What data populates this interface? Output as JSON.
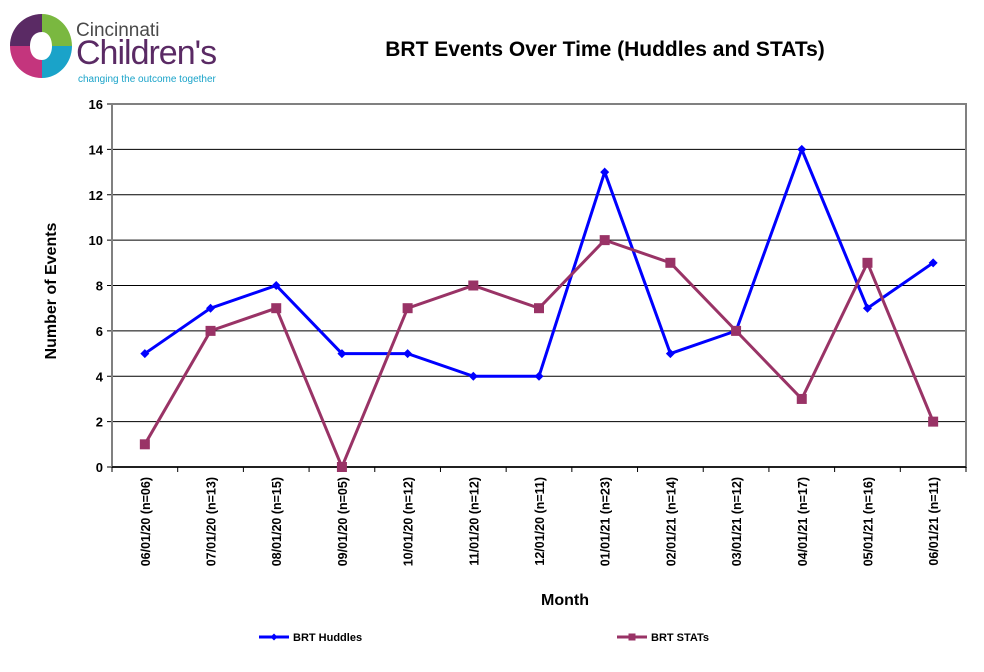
{
  "logo": {
    "line1": "Cincinnati",
    "line2": "Children's",
    "tagline": "changing the outcome together",
    "colors": [
      "#7ab840",
      "#1aa3c9",
      "#c4357d",
      "#5a2a64"
    ]
  },
  "chart_data": {
    "type": "line",
    "title": "BRT Events Over Time (Huddles and STATs)",
    "xlabel": "Month",
    "ylabel": "Number of Events",
    "ylim": [
      0,
      16
    ],
    "yticks": [
      0,
      2,
      4,
      6,
      8,
      10,
      12,
      14,
      16
    ],
    "grid": true,
    "legend_position": "bottom",
    "categories": [
      "06/01/20 (n=06)",
      "07/01/20 (n=13)",
      "08/01/20 (n=15)",
      "09/01/20 (n=05)",
      "10/01/20 (n=12)",
      "11/01/20 (n=12)",
      "12/01/20 (n=11)",
      "01/01/21 (n=23)",
      "02/01/21 (n=14)",
      "03/01/21 (n=12)",
      "04/01/21 (n=17)",
      "05/01/21 (n=16)",
      "06/01/21 (n=11)"
    ],
    "series": [
      {
        "name": "BRT Huddles",
        "color": "#0000ff",
        "marker": "diamond",
        "values": [
          5,
          7,
          8,
          5,
          5,
          4,
          4,
          13,
          5,
          6,
          14,
          7,
          9
        ]
      },
      {
        "name": "BRT STATs",
        "color": "#993366",
        "marker": "square",
        "values": [
          1,
          6,
          7,
          0,
          7,
          8,
          7,
          10,
          9,
          6,
          3,
          9,
          2
        ]
      }
    ]
  }
}
